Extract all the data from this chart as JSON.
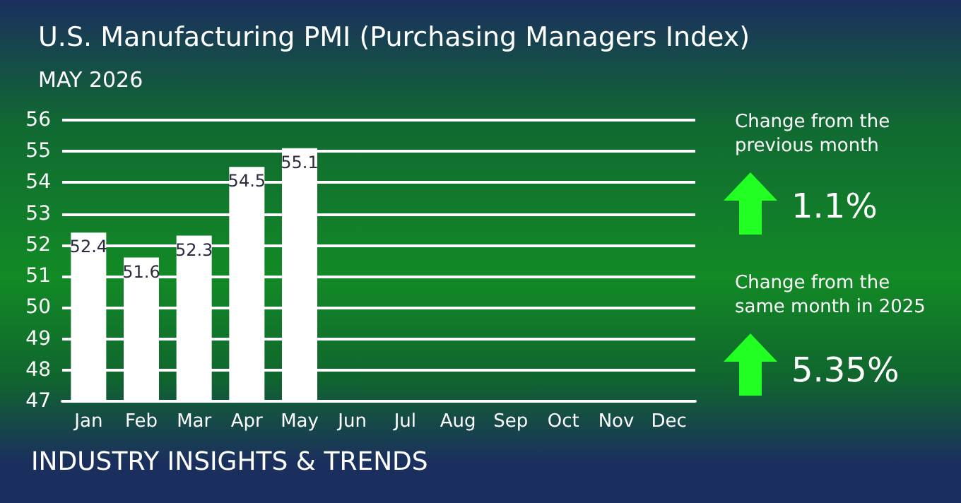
{
  "chart_data": {
    "type": "bar",
    "title": "U.S. Manufacturing PMI (Purchasing Managers Index)",
    "subtitle": "MAY 2026",
    "categories": [
      "Jan",
      "Feb",
      "Mar",
      "Apr",
      "May",
      "Jun",
      "Jul",
      "Aug",
      "Sep",
      "Oct",
      "Nov",
      "Dec"
    ],
    "values": [
      52.4,
      51.6,
      52.3,
      54.5,
      55.1,
      null,
      null,
      null,
      null,
      null,
      null,
      null
    ],
    "color": "#ffffff",
    "data_labels": true,
    "ylim": [
      47,
      56
    ],
    "yticks": [
      47,
      48,
      49,
      50,
      51,
      52,
      53,
      54,
      55,
      56
    ],
    "grid": "y",
    "annotations": [
      "Change from the\nprevious month",
      "1.1%",
      "Change from the\nsame month in 2025",
      "5.35%",
      "INDUSTRY INSIGHTS & TRENDS"
    ]
  }
}
